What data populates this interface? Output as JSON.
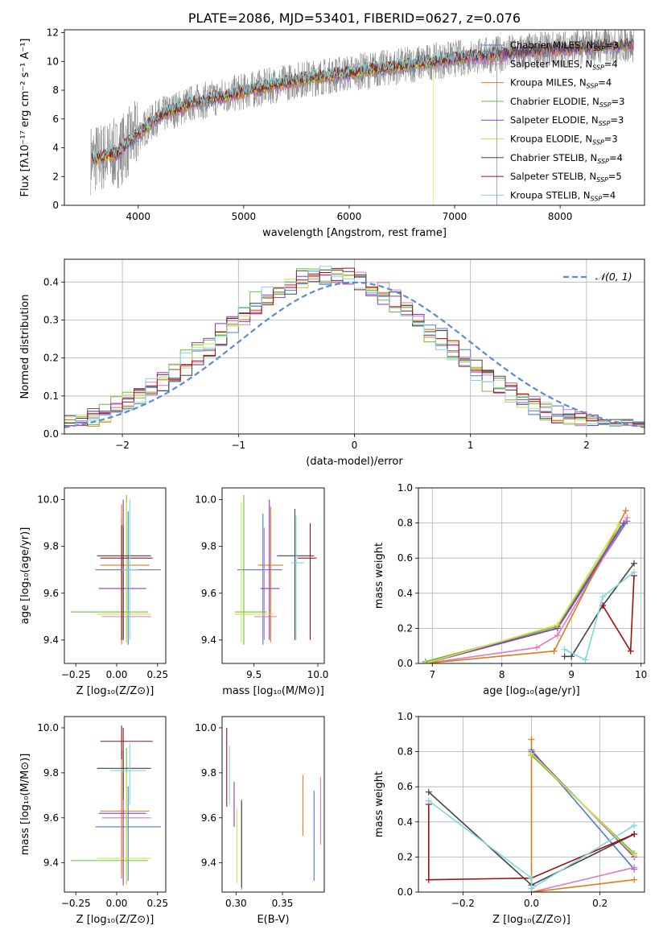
{
  "colors": {
    "chabrier_miles": "#4e79d4",
    "salpeter_miles": "#e377c2",
    "kroupa_miles": "#e07b1a",
    "chabrier_elodie": "#6cbf3a",
    "salpeter_elodie": "#8e3ab8",
    "kroupa_elodie": "#d4e04a",
    "chabrier_stelib": "#444444",
    "salpeter_stelib": "#a01010",
    "kroupa_stelib": "#7fd8e0",
    "data": "#808080",
    "normal": "#5b8bd8",
    "grid": "#b0b0b0"
  },
  "chart_data": [
    {
      "id": "spectrum",
      "type": "line",
      "title": "PLATE=2086, MJD=53401, FIBERID=0627, z=0.076",
      "xlabel": "wavelength [Angstrom, rest frame]",
      "ylabel": "Flux [fλ10⁻¹⁷ erg cm⁻² s⁻¹ A⁻¹]",
      "xlim": [
        3300,
        8800
      ],
      "ylim": [
        0,
        12.2
      ],
      "xticks": [
        4000,
        5000,
        6000,
        7000,
        8000
      ],
      "yticks": [
        0,
        2,
        4,
        6,
        8,
        10,
        12
      ],
      "grid": false,
      "legend_position": "right",
      "continuum_x": [
        3550,
        3800,
        4000,
        4200,
        4500,
        5000,
        5500,
        6000,
        6500,
        7000,
        7400,
        8000,
        8700
      ],
      "continuum_y": [
        3.2,
        3.6,
        5.0,
        6.2,
        7.1,
        7.9,
        8.7,
        9.2,
        9.7,
        10.2,
        10.5,
        10.9,
        11.2
      ],
      "legend": [
        "Chabrier MILES, N_SSP=3",
        "Salpeter MILES, N_SSP=4",
        "Kroupa MILES, N_SSP=4",
        "Chabrier ELODIE, N_SSP=3",
        "Salpeter ELODIE, N_SSP=3",
        "Kroupa ELODIE, N_SSP=3",
        "Chabrier STELIB, N_SSP=4",
        "Salpeter STELIB, N_SSP=5",
        "Kroupa STELIB, N_SSP=4"
      ],
      "legend_rich": [
        [
          "Chabrier MILES, N",
          "SSP",
          "=3"
        ],
        [
          "Salpeter MILES, N",
          "SSP",
          "=4"
        ],
        [
          "Kroupa MILES, N",
          "SSP",
          "=4"
        ],
        [
          "Chabrier ELODIE, N",
          "SSP",
          "=3"
        ],
        [
          "Salpeter ELODIE, N",
          "SSP",
          "=3"
        ],
        [
          "Kroupa ELODIE, N",
          "SSP",
          "=3"
        ],
        [
          "Chabrier STELIB, N",
          "SSP",
          "=4"
        ],
        [
          "Salpeter STELIB, N",
          "SSP",
          "=5"
        ],
        [
          "Kroupa STELIB, N",
          "SSP",
          "=4"
        ]
      ]
    },
    {
      "id": "residuals",
      "type": "histogram",
      "xlabel": "(data-model)/error",
      "ylabel": "Normed distribution",
      "xlim": [
        -2.5,
        2.5
      ],
      "ylim": [
        0,
        0.46
      ],
      "xticks": [
        -2,
        -1,
        0,
        1,
        2
      ],
      "yticks": [
        0.0,
        0.1,
        0.2,
        0.3,
        0.4
      ],
      "grid": true,
      "legend": [
        "𝒩(0, 1)"
      ],
      "legend_position": "top-right",
      "bin_width": 0.1,
      "base_hist": [
        0.03,
        0.03,
        0.04,
        0.05,
        0.06,
        0.08,
        0.09,
        0.11,
        0.12,
        0.13,
        0.15,
        0.17,
        0.19,
        0.22,
        0.24,
        0.26,
        0.28,
        0.3,
        0.32,
        0.33,
        0.34,
        0.35,
        0.37,
        0.38,
        0.39,
        0.4,
        0.4,
        0.4,
        0.39,
        0.38,
        0.36,
        0.34,
        0.32,
        0.3,
        0.28,
        0.27,
        0.26,
        0.25,
        0.24,
        0.23,
        0.22,
        0.21,
        0.2,
        0.19,
        0.18,
        0.16,
        0.15,
        0.14,
        0.12,
        0.11,
        0.1,
        0.09,
        0.08,
        0.07,
        0.07,
        0.06,
        0.05,
        0.05,
        0.04,
        0.04,
        0.04,
        0.03,
        0.03,
        0.03,
        0.03,
        0.03,
        0.03,
        0.03,
        0.03,
        0.03,
        0.03,
        0.03,
        0.03,
        0.03,
        0.03,
        0.03,
        0.03,
        0.03,
        0.03,
        0.03,
        0.03,
        0.03,
        0.03,
        0.03,
        0.03,
        0.03,
        0.03,
        0.03,
        0.03,
        0.03,
        0.03,
        0.03,
        0.03,
        0.03,
        0.03,
        0.03,
        0.03,
        0.03,
        0.03,
        0.03
      ]
    },
    {
      "id": "age_vs_Z",
      "type": "errorbar",
      "xlabel": "Z [log₁₀(Z/Z⊙)]",
      "ylabel": "age  [log₁₀(age/yr)]",
      "xlim": [
        -0.32,
        0.3
      ],
      "ylim": [
        9.3,
        10.05
      ],
      "xticks": [
        -0.25,
        0.0,
        0.25
      ],
      "yticks": [
        9.4,
        9.6,
        9.8,
        10.0
      ],
      "points": [
        {
          "x": 0.07,
          "y": 9.7,
          "xerr": [
            0.2,
            0.2
          ],
          "yerr": [
            0.32,
            0.25
          ],
          "c": "chabrier_miles"
        },
        {
          "x": 0.03,
          "y": 9.5,
          "xerr": [
            0.12,
            0.18
          ],
          "yerr": [
            0.12,
            0.42
          ],
          "c": "salpeter_miles"
        },
        {
          "x": 0.03,
          "y": 9.72,
          "xerr": [
            0.13,
            0.17
          ],
          "yerr": [
            0.33,
            0.26
          ],
          "c": "kroupa_miles"
        },
        {
          "x": 0.06,
          "y": 9.52,
          "xerr": [
            0.34,
            0.13
          ],
          "yerr": [
            0.13,
            0.5
          ],
          "c": "chabrier_elodie"
        },
        {
          "x": 0.04,
          "y": 9.62,
          "xerr": [
            0.15,
            0.14
          ],
          "yerr": [
            0.22,
            0.38
          ],
          "c": "salpeter_elodie"
        },
        {
          "x": 0.06,
          "y": 9.51,
          "xerr": [
            0.18,
            0.15
          ],
          "yerr": [
            0.12,
            0.48
          ],
          "c": "kroupa_elodie"
        },
        {
          "x": 0.04,
          "y": 9.76,
          "xerr": [
            0.16,
            0.17
          ],
          "yerr": [
            0.36,
            0.13
          ],
          "c": "chabrier_stelib"
        },
        {
          "x": 0.03,
          "y": 9.75,
          "xerr": [
            0.13,
            0.19
          ],
          "yerr": [
            0.35,
            0.14
          ],
          "c": "salpeter_stelib"
        },
        {
          "x": 0.08,
          "y": 9.7,
          "xerr": [
            0.05,
            0.05
          ],
          "yerr": [
            0.3,
            0.3
          ],
          "c": "kroupa_stelib"
        }
      ]
    },
    {
      "id": "age_vs_mass",
      "type": "errorbar",
      "xlabel": "mass [log₁₀(M/M⊙)]",
      "ylabel": "",
      "xlim": [
        9.25,
        10.05
      ],
      "ylim": [
        9.3,
        10.05
      ],
      "xticks": [
        9.5,
        10.0
      ],
      "yticks": [
        9.4,
        9.6,
        9.8,
        10.0
      ],
      "points": [
        {
          "x": 9.57,
          "y": 9.7,
          "xerr": [
            0.2,
            0.15
          ],
          "yerr": [
            0.32,
            0.24
          ],
          "c": "chabrier_miles"
        },
        {
          "x": 9.58,
          "y": 9.5,
          "xerr": [
            0.08,
            0.1
          ],
          "yerr": [
            0.1,
            0.38
          ],
          "c": "salpeter_miles"
        },
        {
          "x": 9.63,
          "y": 9.72,
          "xerr": [
            0.1,
            0.1
          ],
          "yerr": [
            0.33,
            0.25
          ],
          "c": "kroupa_miles"
        },
        {
          "x": 9.42,
          "y": 9.52,
          "xerr": [
            0.07,
            0.18
          ],
          "yerr": [
            0.14,
            0.5
          ],
          "c": "chabrier_elodie"
        },
        {
          "x": 9.62,
          "y": 9.62,
          "xerr": [
            0.07,
            0.08
          ],
          "yerr": [
            0.22,
            0.38
          ],
          "c": "salpeter_elodie"
        },
        {
          "x": 9.4,
          "y": 9.51,
          "xerr": [
            0.05,
            0.25
          ],
          "yerr": [
            0.12,
            0.48
          ],
          "c": "kroupa_elodie"
        },
        {
          "x": 9.82,
          "y": 9.76,
          "xerr": [
            0.14,
            0.15
          ],
          "yerr": [
            0.36,
            0.2
          ],
          "c": "chabrier_stelib"
        },
        {
          "x": 9.94,
          "y": 9.75,
          "xerr": [
            0.1,
            0.05
          ],
          "yerr": [
            0.35,
            0.15
          ],
          "c": "salpeter_stelib"
        },
        {
          "x": 9.83,
          "y": 9.73,
          "xerr": [
            0.04,
            0.06
          ],
          "yerr": [
            0.33,
            0.2
          ],
          "c": "kroupa_stelib"
        }
      ]
    },
    {
      "id": "weight_vs_age",
      "type": "line",
      "xlabel": "age  [log₁₀(age/yr)]",
      "ylabel": "mass weight",
      "xlim": [
        6.8,
        10.05
      ],
      "ylim": [
        0,
        1.0
      ],
      "xticks": [
        7,
        8,
        9,
        10
      ],
      "yticks": [
        0.0,
        0.2,
        0.4,
        0.6,
        0.8,
        1.0
      ],
      "grid": true,
      "series": [
        {
          "c": "chabrier_miles",
          "x": [
            6.9,
            8.8,
            9.8
          ],
          "y": [
            0.01,
            0.2,
            0.81
          ]
        },
        {
          "c": "salpeter_miles",
          "x": [
            6.9,
            8.5,
            8.8,
            9.8
          ],
          "y": [
            0.0,
            0.09,
            0.16,
            0.83
          ]
        },
        {
          "c": "kroupa_miles",
          "x": [
            6.9,
            8.75,
            9.78
          ],
          "y": [
            0.0,
            0.07,
            0.87
          ]
        },
        {
          "c": "chabrier_elodie",
          "x": [
            6.9,
            8.8,
            9.7
          ],
          "y": [
            0.01,
            0.21,
            0.78
          ]
        },
        {
          "c": "salpeter_elodie",
          "x": [
            6.9,
            8.8,
            9.75
          ],
          "y": [
            0.0,
            0.2,
            0.8
          ]
        },
        {
          "c": "kroupa_elodie",
          "x": [
            6.9,
            8.8,
            9.68
          ],
          "y": [
            0.0,
            0.22,
            0.79
          ]
        },
        {
          "c": "chabrier_stelib",
          "x": [
            8.9,
            9.0,
            9.45,
            9.9
          ],
          "y": [
            0.04,
            0.04,
            0.33,
            0.57
          ]
        },
        {
          "c": "salpeter_stelib",
          "x": [
            9.45,
            9.85,
            9.9
          ],
          "y": [
            0.33,
            0.07,
            0.5
          ]
        },
        {
          "c": "kroupa_stelib",
          "x": [
            8.9,
            9.2,
            9.45,
            9.9
          ],
          "y": [
            0.08,
            0.02,
            0.38,
            0.52
          ]
        }
      ]
    },
    {
      "id": "mass_vs_Z",
      "type": "errorbar",
      "xlabel": "Z [log₁₀(Z/Z⊙)]",
      "ylabel": "mass [log₁₀(M/M⊙)]",
      "xlim": [
        -0.32,
        0.3
      ],
      "ylim": [
        9.27,
        10.05
      ],
      "xticks": [
        -0.25,
        0.0,
        0.25
      ],
      "yticks": [
        9.4,
        9.6,
        9.8,
        10.0
      ],
      "points": [
        {
          "x": 0.07,
          "y": 9.56,
          "xerr": [
            0.2,
            0.2
          ],
          "yerr": [
            0.24,
            0.18
          ],
          "c": "chabrier_miles"
        },
        {
          "x": 0.03,
          "y": 9.6,
          "xerr": [
            0.12,
            0.18
          ],
          "yerr": [
            0.24,
            0.2
          ],
          "c": "salpeter_miles"
        },
        {
          "x": 0.03,
          "y": 9.63,
          "xerr": [
            0.13,
            0.17
          ],
          "yerr": [
            0.3,
            0.27
          ],
          "c": "kroupa_miles"
        },
        {
          "x": 0.06,
          "y": 9.41,
          "xerr": [
            0.34,
            0.13
          ],
          "yerr": [
            0.1,
            0.5
          ],
          "c": "chabrier_elodie"
        },
        {
          "x": 0.04,
          "y": 9.62,
          "xerr": [
            0.15,
            0.14
          ],
          "yerr": [
            0.32,
            0.28
          ],
          "c": "salpeter_elodie"
        },
        {
          "x": 0.06,
          "y": 9.42,
          "xerr": [
            0.18,
            0.15
          ],
          "yerr": [
            0.12,
            0.38
          ],
          "c": "kroupa_elodie"
        },
        {
          "x": 0.04,
          "y": 9.82,
          "xerr": [
            0.16,
            0.17
          ],
          "yerr": [
            0.14,
            0.18
          ],
          "c": "chabrier_stelib"
        },
        {
          "x": 0.03,
          "y": 9.94,
          "xerr": [
            0.13,
            0.19
          ],
          "yerr": [
            0.08,
            0.07
          ],
          "c": "salpeter_stelib"
        },
        {
          "x": 0.08,
          "y": 9.81,
          "xerr": [
            0.12,
            0.1
          ],
          "yerr": [
            0.15,
            0.12
          ],
          "c": "kroupa_stelib"
        }
      ]
    },
    {
      "id": "mass_vs_ebv",
      "type": "errorbar",
      "xlabel": "E(B-V)",
      "ylabel": "",
      "xlim": [
        0.285,
        0.395
      ],
      "ylim": [
        9.27,
        10.05
      ],
      "xticks": [
        0.3,
        0.35
      ],
      "yticks": [
        9.4,
        9.6,
        9.8,
        10.0
      ],
      "points": [
        {
          "x": 0.384,
          "y": 9.56,
          "xerr": [
            0,
            0
          ],
          "yerr": [
            0.24,
            0.16
          ],
          "c": "chabrier_miles"
        },
        {
          "x": 0.391,
          "y": 9.62,
          "xerr": [
            0,
            0
          ],
          "yerr": [
            0.14,
            0.16
          ],
          "c": "salpeter_miles"
        },
        {
          "x": 0.372,
          "y": 9.64,
          "xerr": [
            0,
            0
          ],
          "yerr": [
            0.12,
            0.15
          ],
          "c": "kroupa_miles"
        },
        {
          "x": 0.306,
          "y": 9.48,
          "xerr": [
            0,
            0
          ],
          "yerr": [
            0.2,
            0.19
          ],
          "c": "chabrier_elodie"
        },
        {
          "x": 0.298,
          "y": 9.69,
          "xerr": [
            0,
            0
          ],
          "yerr": [
            0.13,
            0.07
          ],
          "c": "salpeter_elodie"
        },
        {
          "x": 0.301,
          "y": 9.47,
          "xerr": [
            0,
            0
          ],
          "yerr": [
            0.16,
            0.17
          ],
          "c": "kroupa_elodie"
        },
        {
          "x": 0.306,
          "y": 9.48,
          "xerr": [
            0,
            0
          ],
          "yerr": [
            0.19,
            0.2
          ],
          "c": "chabrier_stelib"
        },
        {
          "x": 0.29,
          "y": 9.82,
          "xerr": [
            0,
            0
          ],
          "yerr": [
            0.17,
            0.18
          ],
          "c": "salpeter_stelib"
        },
        {
          "x": 0.293,
          "y": 9.78,
          "xerr": [
            0,
            0
          ],
          "yerr": [
            0.12,
            0.14
          ],
          "c": "kroupa_stelib"
        }
      ]
    },
    {
      "id": "weight_vs_Z",
      "type": "line",
      "xlabel": "Z [log₁₀(Z/Z⊙)]",
      "ylabel": "mass weight",
      "xlim": [
        -0.33,
        0.33
      ],
      "ylim": [
        0,
        1.0
      ],
      "xticks": [
        -0.2,
        0.0,
        0.2
      ],
      "yticks": [
        0.0,
        0.2,
        0.4,
        0.6,
        0.8,
        1.0
      ],
      "grid": true,
      "series": [
        {
          "c": "chabrier_miles",
          "x": [
            0.0,
            0.3
          ],
          "y": [
            0.81,
            0.13
          ]
        },
        {
          "c": "salpeter_miles",
          "x": [
            0.0,
            0.3
          ],
          "y": [
            0.0,
            0.14
          ]
        },
        {
          "c": "kroupa_miles",
          "x": [
            0.0,
            0.0,
            0.3
          ],
          "y": [
            0.87,
            0.0,
            0.07
          ]
        },
        {
          "c": "chabrier_elodie",
          "x": [
            0.0,
            0.3
          ],
          "y": [
            0.78,
            0.22
          ]
        },
        {
          "c": "salpeter_elodie",
          "x": [
            0.0,
            0.3
          ],
          "y": [
            0.8,
            0.2
          ]
        },
        {
          "c": "kroupa_elodie",
          "x": [
            0.0,
            0.3
          ],
          "y": [
            0.79,
            0.21
          ]
        },
        {
          "c": "chabrier_stelib",
          "x": [
            -0.3,
            0.0,
            0.3
          ],
          "y": [
            0.57,
            0.04,
            0.33
          ]
        },
        {
          "c": "salpeter_stelib",
          "x": [
            -0.3,
            -0.3,
            0.0,
            0.3
          ],
          "y": [
            0.5,
            0.07,
            0.08,
            0.33
          ]
        },
        {
          "c": "kroupa_stelib",
          "x": [
            -0.3,
            0.0,
            0.0,
            0.3
          ],
          "y": [
            0.52,
            0.08,
            0.02,
            0.38
          ]
        }
      ]
    }
  ]
}
